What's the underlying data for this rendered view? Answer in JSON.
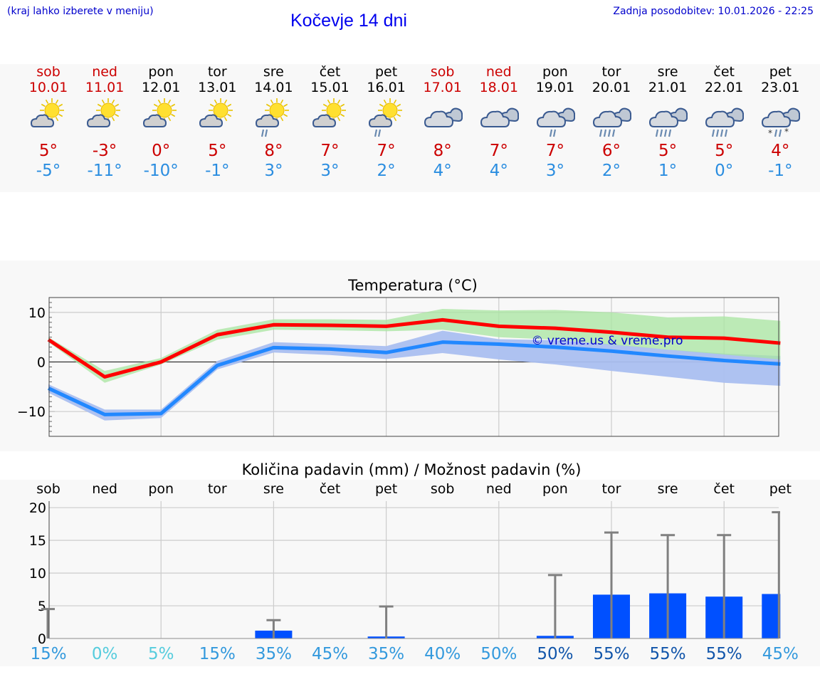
{
  "header": {
    "hint": "(kraj lahko izberete v meniju)",
    "title": "Kočevje 14 dni",
    "updated": "Zadnja posodobitev: 10.01.2026 - 22:25"
  },
  "colors": {
    "weekend": "#cc0000",
    "weekday": "#000000",
    "tmax": "#cc0000",
    "tmin": "#2a8de0",
    "tmax_line": "#ff0000",
    "tmin_line": "#2288ff",
    "tmax_band": "#a8e6a0",
    "tmin_band": "#aabff0",
    "overlap_band": "#7cc4a4",
    "bar": "#0050ff",
    "errbar": "#808080",
    "watermark": "#0000cc"
  },
  "days": [
    {
      "name": "sob",
      "date": "10.01",
      "weekend": true,
      "icon": "sun-cloud-icon",
      "tmax": "5°",
      "tmin": "-5°"
    },
    {
      "name": "ned",
      "date": "11.01",
      "weekend": true,
      "icon": "sun-cloud-icon",
      "tmax": "-3°",
      "tmin": "-11°"
    },
    {
      "name": "pon",
      "date": "12.01",
      "weekend": false,
      "icon": "sun-cloud-icon",
      "tmax": "0°",
      "tmin": "-10°"
    },
    {
      "name": "tor",
      "date": "13.01",
      "weekend": false,
      "icon": "sun-cloud-icon",
      "tmax": "5°",
      "tmin": "-1°"
    },
    {
      "name": "sre",
      "date": "14.01",
      "weekend": false,
      "icon": "sun-cloud-rain-icon",
      "tmax": "8°",
      "tmin": "3°"
    },
    {
      "name": "čet",
      "date": "15.01",
      "weekend": false,
      "icon": "sun-cloud-icon",
      "tmax": "7°",
      "tmin": "3°"
    },
    {
      "name": "pet",
      "date": "16.01",
      "weekend": false,
      "icon": "sun-cloud-rain-icon",
      "tmax": "7°",
      "tmin": "2°"
    },
    {
      "name": "sob",
      "date": "17.01",
      "weekend": true,
      "icon": "cloud-icon",
      "tmax": "8°",
      "tmin": "4°"
    },
    {
      "name": "ned",
      "date": "18.01",
      "weekend": true,
      "icon": "cloud-icon",
      "tmax": "7°",
      "tmin": "4°"
    },
    {
      "name": "pon",
      "date": "19.01",
      "weekend": false,
      "icon": "cloud-rain-icon",
      "tmax": "7°",
      "tmin": "3°"
    },
    {
      "name": "tor",
      "date": "20.01",
      "weekend": false,
      "icon": "cloud-heavy-rain-icon",
      "tmax": "6°",
      "tmin": "2°"
    },
    {
      "name": "sre",
      "date": "21.01",
      "weekend": false,
      "icon": "cloud-heavy-rain-icon",
      "tmax": "5°",
      "tmin": "1°"
    },
    {
      "name": "čet",
      "date": "22.01",
      "weekend": false,
      "icon": "cloud-heavy-rain-icon",
      "tmax": "5°",
      "tmin": "0°"
    },
    {
      "name": "pet",
      "date": "23.01",
      "weekend": false,
      "icon": "cloud-sleet-icon",
      "tmax": "4°",
      "tmin": "-1°"
    }
  ],
  "chart_data": [
    {
      "type": "line",
      "title": "Temperatura (°C)",
      "watermark": "© vreme.us & vreme.pro",
      "ylim": [
        -15,
        13
      ],
      "yticks": [
        10,
        0,
        -10
      ],
      "ytick_labels": [
        "10",
        "0",
        "−10"
      ],
      "x": [
        0,
        1,
        2,
        3,
        4,
        5,
        6,
        7,
        8,
        9,
        10,
        11,
        12,
        13
      ],
      "series": [
        {
          "name": "tmax",
          "values": [
            4.5,
            -3.0,
            0.0,
            5.5,
            7.5,
            7.4,
            7.2,
            8.5,
            7.2,
            6.8,
            6.0,
            5.0,
            4.8,
            3.8
          ],
          "band_low": [
            4.0,
            -4.2,
            -0.5,
            4.5,
            6.5,
            6.4,
            6.2,
            6.5,
            5.0,
            4.5,
            3.5,
            2.5,
            1.5,
            0.5
          ],
          "band_high": [
            5.0,
            -1.8,
            0.8,
            6.5,
            8.6,
            8.6,
            8.5,
            10.7,
            10.4,
            10.5,
            10.0,
            9.0,
            9.2,
            8.3
          ]
        },
        {
          "name": "tmin",
          "values": [
            -5.3,
            -10.6,
            -10.4,
            -0.7,
            2.9,
            2.6,
            1.9,
            4.0,
            3.6,
            3.0,
            2.2,
            1.2,
            0.3,
            -0.4
          ],
          "band_low": [
            -6.2,
            -11.8,
            -11.3,
            -1.5,
            1.9,
            1.4,
            0.6,
            1.8,
            0.5,
            -0.5,
            -1.8,
            -3.0,
            -4.2,
            -4.8
          ],
          "band_high": [
            -4.5,
            -9.6,
            -9.6,
            0.2,
            4.0,
            3.6,
            3.2,
            6.3,
            4.6,
            4.4,
            3.6,
            2.5,
            1.7,
            1.2
          ]
        }
      ]
    },
    {
      "type": "bar",
      "title": "Količina padavin (mm) / Možnost padavin (%)",
      "categories": [
        "sob",
        "ned",
        "pon",
        "tor",
        "sre",
        "čet",
        "pet",
        "sob",
        "ned",
        "pon",
        "tor",
        "sre",
        "čet",
        "pet"
      ],
      "ylim": [
        0,
        21
      ],
      "yticks": [
        20,
        15,
        10,
        5,
        0
      ],
      "ytick_labels": [
        "20",
        "15",
        "10",
        "5",
        "0"
      ],
      "values": [
        0.05,
        0.05,
        0.05,
        0.05,
        1.2,
        0.05,
        0.3,
        0.05,
        0.05,
        0.4,
        6.7,
        6.9,
        6.4,
        6.8
      ],
      "upper": [
        4.5,
        0.05,
        0.05,
        0.05,
        2.8,
        0.05,
        4.9,
        0.05,
        0.05,
        9.7,
        16.2,
        15.8,
        15.8,
        19.3
      ],
      "probabilities": [
        "15%",
        "0%",
        "5%",
        "15%",
        "35%",
        "45%",
        "35%",
        "40%",
        "50%",
        "50%",
        "55%",
        "55%",
        "55%",
        "45%"
      ],
      "prob_colors": [
        "#3399dd",
        "#55ccdd",
        "#55ccdd",
        "#3399dd",
        "#3399dd",
        "#3399dd",
        "#3399dd",
        "#3399dd",
        "#3399dd",
        "#1155aa",
        "#1155aa",
        "#1155aa",
        "#1155aa",
        "#3399dd"
      ]
    }
  ]
}
